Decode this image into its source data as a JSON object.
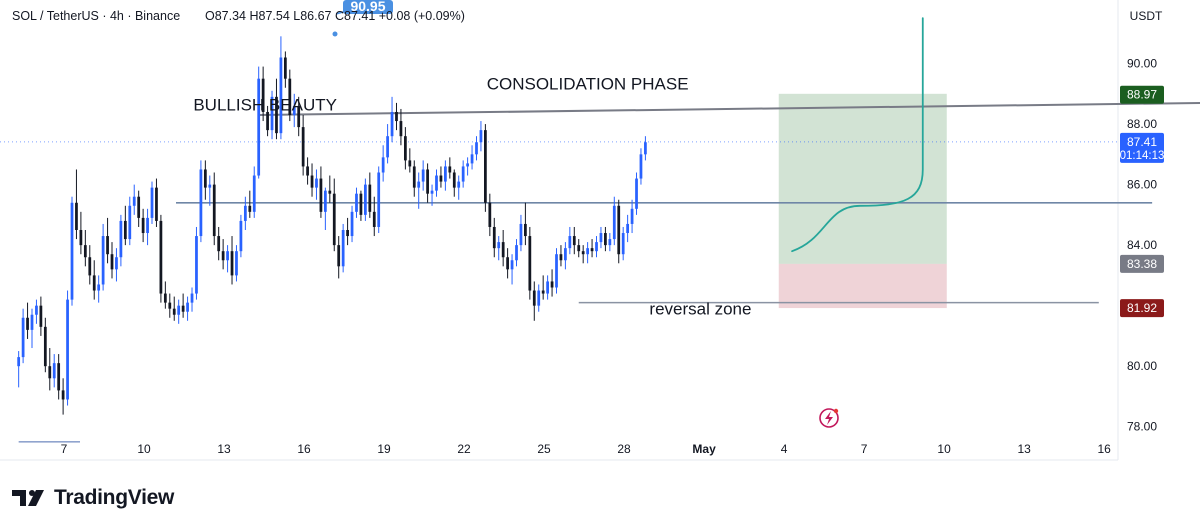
{
  "header": {
    "symbol": "SOL / TetherUS · 4h · Binance",
    "ohlc": "O87.34  H87.54  L86.67  C87.41  +0.08 (+0.09%)",
    "high_marker": "90.95"
  },
  "currency_button": "USDT",
  "brand": "TradingView",
  "colors": {
    "up": "#2962ff",
    "down": "#131722",
    "grid_line": "#cfd8e6",
    "target_zone": "#7fae84",
    "stop_zone": "#e9c4c9",
    "projection": "#26a69a",
    "tp_label": "#1b5e20",
    "sl_label": "#8b1a1a",
    "entry_label": "#787b86",
    "last_label": "#2962ff"
  },
  "chart_data": {
    "type": "candlestick",
    "title": "SOL / TetherUS · 4h · Binance",
    "y_axis": {
      "range": [
        76.9,
        92.1
      ],
      "ticks": [
        "90.00",
        "88.00",
        "86.00",
        "84.00",
        "80.00",
        "78.00"
      ],
      "tick_values": [
        90,
        88,
        86,
        84,
        80,
        78
      ]
    },
    "x_axis": {
      "ticks": [
        "7",
        "10",
        "13",
        "16",
        "19",
        "22",
        "25",
        "28",
        "May",
        "4",
        "7",
        "10",
        "13",
        "16"
      ],
      "tick_index": [
        0,
        3,
        6,
        9,
        12,
        15,
        18,
        21,
        24,
        27,
        30,
        33,
        36,
        39
      ]
    },
    "candles_per_day": 6,
    "start_index": -1.7,
    "candles": [
      [
        80,
        80.5,
        79.3,
        80.3
      ],
      [
        80.3,
        81.9,
        80.1,
        81.6
      ],
      [
        81.6,
        82.1,
        80.9,
        81.2
      ],
      [
        81.2,
        81.9,
        80.6,
        81.7
      ],
      [
        81.7,
        82.2,
        81.4,
        82.0
      ],
      [
        82.0,
        82.3,
        81.0,
        81.3
      ],
      [
        81.3,
        81.6,
        79.8,
        80.0
      ],
      [
        80.0,
        80.6,
        79.2,
        79.6
      ],
      [
        79.6,
        80.4,
        79.3,
        80.1
      ],
      [
        80.1,
        80.4,
        78.9,
        79.2
      ],
      [
        79.2,
        79.6,
        78.4,
        78.9
      ],
      [
        78.9,
        82.5,
        78.7,
        82.2
      ],
      [
        82.2,
        85.6,
        82.0,
        85.4
      ],
      [
        85.4,
        86.5,
        84.2,
        84.5
      ],
      [
        84.5,
        85.1,
        83.7,
        84.0
      ],
      [
        84.0,
        84.5,
        83.3,
        83.6
      ],
      [
        83.6,
        84.0,
        82.7,
        83.0
      ],
      [
        83.0,
        83.5,
        82.2,
        82.5
      ],
      [
        82.5,
        83.0,
        82.1,
        82.7
      ],
      [
        82.7,
        84.7,
        82.5,
        84.3
      ],
      [
        84.3,
        84.9,
        83.4,
        83.7
      ],
      [
        83.7,
        84.1,
        82.9,
        83.2
      ],
      [
        83.2,
        83.9,
        82.8,
        83.6
      ],
      [
        83.6,
        85.0,
        83.3,
        84.8
      ],
      [
        84.8,
        85.3,
        84.0,
        84.2
      ],
      [
        84.2,
        85.6,
        84.0,
        85.3
      ],
      [
        85.3,
        86.0,
        85.0,
        85.6
      ],
      [
        85.6,
        85.8,
        84.6,
        84.9
      ],
      [
        84.9,
        85.2,
        84.1,
        84.4
      ],
      [
        84.4,
        85.2,
        84.0,
        84.9
      ],
      [
        84.9,
        86.1,
        84.7,
        85.9
      ],
      [
        85.9,
        86.2,
        84.6,
        84.8
      ],
      [
        84.8,
        85.0,
        82.1,
        82.4
      ],
      [
        82.4,
        82.8,
        81.9,
        82.1
      ],
      [
        82.1,
        82.4,
        81.6,
        81.9
      ],
      [
        81.9,
        82.3,
        81.5,
        81.7
      ],
      [
        81.7,
        82.2,
        81.4,
        82.0
      ],
      [
        82.0,
        82.4,
        81.6,
        81.8
      ],
      [
        81.8,
        82.3,
        81.5,
        82.1
      ],
      [
        82.1,
        82.6,
        81.8,
        82.4
      ],
      [
        82.4,
        84.6,
        82.2,
        84.3
      ],
      [
        84.3,
        86.8,
        84.1,
        86.5
      ],
      [
        86.5,
        86.8,
        85.5,
        85.9
      ],
      [
        85.9,
        86.3,
        85.3,
        86.0
      ],
      [
        86.0,
        86.4,
        84.0,
        84.3
      ],
      [
        84.3,
        84.6,
        83.5,
        83.8
      ],
      [
        83.8,
        84.2,
        83.2,
        83.5
      ],
      [
        83.5,
        84.0,
        83.1,
        83.8
      ],
      [
        83.8,
        84.3,
        82.7,
        83.0
      ],
      [
        83.0,
        84.0,
        82.8,
        83.8
      ],
      [
        83.8,
        85.0,
        83.6,
        84.8
      ],
      [
        84.8,
        85.6,
        84.5,
        85.3
      ],
      [
        85.3,
        85.8,
        84.9,
        85.1
      ],
      [
        85.1,
        86.6,
        84.9,
        86.3
      ],
      [
        86.3,
        89.9,
        86.2,
        89.5
      ],
      [
        89.5,
        89.9,
        88.1,
        88.4
      ],
      [
        88.4,
        88.6,
        87.6,
        87.8
      ],
      [
        87.8,
        89.1,
        87.5,
        88.9
      ],
      [
        88.9,
        89.5,
        87.5,
        87.7
      ],
      [
        87.7,
        90.9,
        87.5,
        90.2
      ],
      [
        90.2,
        90.4,
        89.2,
        89.5
      ],
      [
        89.5,
        89.8,
        88.1,
        88.3
      ],
      [
        88.3,
        89.0,
        87.9,
        88.6
      ],
      [
        88.6,
        88.9,
        87.6,
        87.9
      ],
      [
        87.9,
        88.3,
        86.3,
        86.6
      ],
      [
        86.6,
        86.9,
        86.0,
        86.3
      ],
      [
        86.3,
        86.7,
        85.6,
        85.9
      ],
      [
        85.9,
        86.5,
        85.5,
        86.2
      ],
      [
        86.2,
        86.6,
        84.9,
        85.1
      ],
      [
        85.1,
        85.9,
        84.5,
        85.8
      ],
      [
        85.8,
        86.3,
        85.4,
        85.7
      ],
      [
        85.7,
        86.2,
        83.8,
        84.0
      ],
      [
        84.0,
        84.3,
        82.9,
        83.3
      ],
      [
        83.3,
        84.7,
        83.1,
        84.5
      ],
      [
        84.5,
        84.9,
        84.0,
        84.3
      ],
      [
        84.3,
        85.3,
        84.1,
        85.1
      ],
      [
        85.1,
        85.9,
        84.9,
        85.7
      ],
      [
        85.7,
        85.8,
        84.8,
        85.0
      ],
      [
        85.0,
        86.2,
        84.8,
        86.0
      ],
      [
        86.0,
        86.4,
        84.9,
        85.1
      ],
      [
        85.1,
        85.6,
        84.3,
        84.6
      ],
      [
        84.6,
        86.6,
        84.4,
        86.4
      ],
      [
        86.4,
        87.3,
        86.1,
        86.9
      ],
      [
        86.9,
        88.0,
        86.7,
        87.6
      ],
      [
        87.6,
        88.9,
        87.4,
        88.4
      ],
      [
        88.4,
        88.7,
        87.8,
        88.1
      ],
      [
        88.1,
        88.5,
        87.3,
        87.6
      ],
      [
        87.6,
        87.9,
        86.5,
        86.8
      ],
      [
        86.8,
        87.2,
        86.4,
        86.6
      ],
      [
        86.6,
        86.8,
        85.6,
        85.9
      ],
      [
        85.9,
        86.4,
        85.2,
        86.1
      ],
      [
        86.1,
        86.8,
        85.8,
        86.5
      ],
      [
        86.5,
        86.7,
        85.4,
        85.7
      ],
      [
        85.7,
        86.0,
        85.3,
        85.8
      ],
      [
        85.8,
        86.5,
        85.6,
        86.3
      ],
      [
        86.3,
        86.6,
        85.9,
        86.1
      ],
      [
        86.1,
        86.8,
        85.8,
        86.6
      ],
      [
        86.6,
        86.9,
        86.2,
        86.4
      ],
      [
        86.4,
        86.5,
        85.6,
        85.9
      ],
      [
        85.9,
        86.3,
        85.5,
        86.1
      ],
      [
        86.1,
        86.8,
        85.9,
        86.6
      ],
      [
        86.6,
        86.9,
        86.3,
        86.7
      ],
      [
        86.7,
        87.3,
        86.5,
        87.0
      ],
      [
        87.0,
        87.6,
        86.8,
        87.4
      ],
      [
        87.4,
        88.1,
        87.1,
        87.8
      ],
      [
        87.8,
        88.0,
        85.1,
        85.4
      ],
      [
        85.4,
        85.7,
        84.3,
        84.6
      ],
      [
        84.6,
        84.9,
        83.6,
        83.9
      ],
      [
        83.9,
        84.3,
        83.5,
        84.1
      ],
      [
        84.1,
        84.5,
        83.3,
        83.6
      ],
      [
        83.6,
        83.9,
        82.9,
        83.2
      ],
      [
        83.2,
        83.7,
        82.7,
        83.5
      ],
      [
        83.5,
        84.2,
        83.3,
        84.0
      ],
      [
        84.0,
        85.0,
        83.8,
        84.7
      ],
      [
        84.7,
        85.4,
        84.0,
        84.3
      ],
      [
        84.3,
        84.6,
        82.2,
        82.5
      ],
      [
        82.5,
        82.8,
        81.5,
        82.0
      ],
      [
        82.0,
        82.7,
        81.8,
        82.5
      ],
      [
        82.5,
        83.0,
        82.2,
        82.4
      ],
      [
        82.4,
        83.0,
        82.2,
        82.8
      ],
      [
        82.8,
        83.2,
        82.3,
        82.6
      ],
      [
        82.6,
        83.9,
        82.4,
        83.7
      ],
      [
        83.7,
        84.0,
        83.3,
        83.5
      ],
      [
        83.5,
        84.1,
        83.2,
        83.9
      ],
      [
        83.9,
        84.6,
        83.7,
        84.3
      ],
      [
        84.3,
        84.6,
        83.7,
        84.0
      ],
      [
        84.0,
        84.2,
        83.6,
        83.8
      ],
      [
        83.8,
        84.0,
        83.4,
        83.7
      ],
      [
        83.7,
        84.1,
        83.4,
        83.9
      ],
      [
        83.9,
        84.2,
        83.6,
        83.8
      ],
      [
        83.8,
        84.3,
        83.6,
        84.1
      ],
      [
        84.1,
        84.6,
        83.9,
        84.4
      ],
      [
        84.4,
        84.6,
        83.8,
        84.0
      ],
      [
        84.0,
        84.4,
        83.8,
        84.2
      ],
      [
        84.2,
        85.6,
        84.0,
        85.3
      ],
      [
        85.3,
        85.5,
        83.4,
        83.7
      ],
      [
        83.7,
        84.6,
        83.5,
        84.4
      ],
      [
        84.4,
        85.0,
        84.1,
        84.7
      ],
      [
        84.7,
        85.5,
        84.4,
        85.2
      ],
      [
        85.2,
        86.4,
        85.0,
        86.2
      ],
      [
        86.2,
        87.2,
        86.0,
        87.0
      ],
      [
        87.0,
        87.6,
        86.8,
        87.4
      ]
    ],
    "lines": [
      {
        "from": [
          7.3,
          88.3
        ],
        "to": [
          42.8,
          88.7
        ],
        "color": "#787b86"
      },
      {
        "from": [
          4.2,
          85.4
        ],
        "to": [
          40.8,
          85.4
        ],
        "color": "#6f86a6"
      },
      {
        "from": [
          19.3,
          82.1
        ],
        "to": [
          38.8,
          82.1
        ],
        "color": "#8a93a3"
      },
      {
        "from": [
          -1.7,
          77.5
        ],
        "to": [
          0.6,
          77.5
        ],
        "color": "#90a4ce"
      }
    ],
    "position": {
      "x_from": 26.8,
      "x_to": 33.1,
      "target": 88.97,
      "entry": 83.38,
      "stop": 81.92,
      "top_edge": 89.0
    },
    "projection": {
      "points": [
        [
          27.3,
          83.8
        ],
        [
          28.6,
          84.2
        ],
        [
          29.3,
          85.3
        ],
        [
          30.4,
          85.3
        ],
        [
          31.5,
          85.3
        ],
        [
          32.2,
          86.5
        ],
        [
          32.2,
          91.5
        ]
      ]
    },
    "annotations": [
      {
        "text": "BULLISH BEAUTY",
        "x": 4.85,
        "y": 88.45
      },
      {
        "text": "CONSOLIDATION PHASE",
        "x": 15.85,
        "y": 89.15
      },
      {
        "text": "reversal zone",
        "x": 21.95,
        "y": 81.7
      }
    ],
    "price_labels": [
      {
        "key": "target",
        "text": "88.97",
        "value": 88.97
      },
      {
        "key": "last",
        "text": "87.41",
        "sub": "01:14:13",
        "value": 87.41
      },
      {
        "key": "entry",
        "text": "83.38",
        "value": 83.38
      },
      {
        "key": "stop",
        "text": "81.92",
        "value": 81.92
      }
    ]
  }
}
